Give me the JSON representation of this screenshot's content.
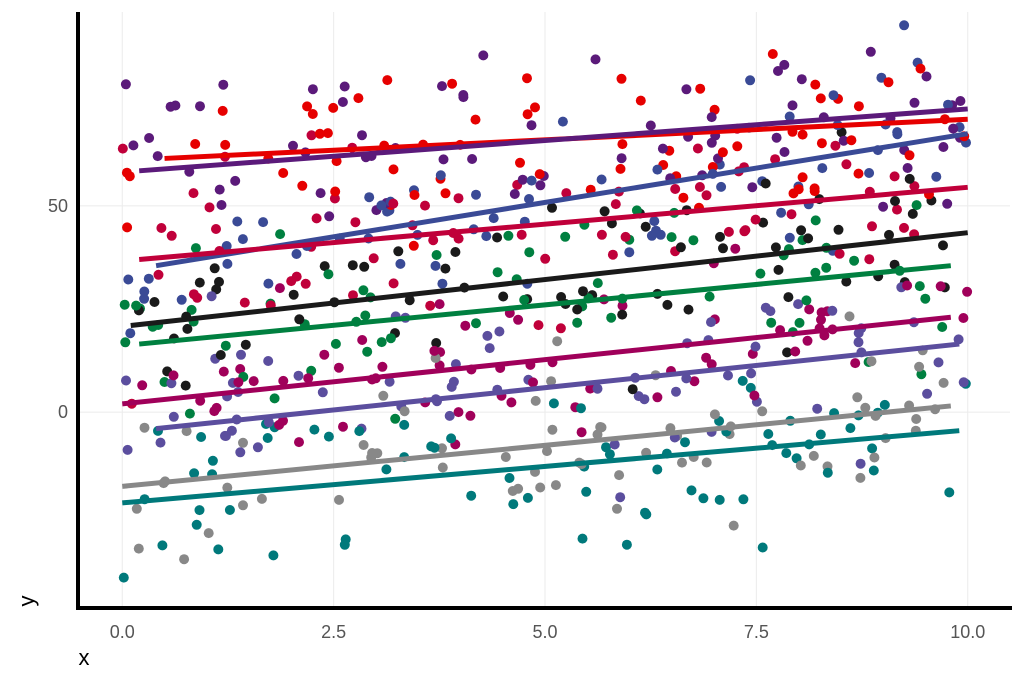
{
  "chart_data": {
    "type": "scatter",
    "title": "",
    "xlabel": "x",
    "ylabel": "y",
    "xlim": [
      -0.5,
      10.5
    ],
    "ylim": [
      -47,
      97
    ],
    "x_ticks": [
      0.0,
      2.5,
      5.0,
      7.5,
      10.0
    ],
    "x_tick_labels": [
      "0.0",
      "2.5",
      "5.0",
      "7.5",
      "10.0"
    ],
    "y_ticks": [
      0,
      50
    ],
    "y_tick_labels": [
      "0",
      "50"
    ],
    "grid": true,
    "legend": "none",
    "points_per_series": 70,
    "series": [
      {
        "color": "#E60000",
        "fit": {
          "x0": 0.5,
          "y0": 61.5,
          "x1": 10.0,
          "y1": 71.0
        }
      },
      {
        "color": "#5B1A7A",
        "fit": {
          "x0": 0.2,
          "y0": 58.5,
          "x1": 10.0,
          "y1": 73.5
        }
      },
      {
        "color": "#3A4A96",
        "fit": {
          "x0": 0.4,
          "y0": 35.5,
          "x1": 10.0,
          "y1": 67.5
        }
      },
      {
        "color": "#C0003A",
        "fit": {
          "x0": 0.2,
          "y0": 37.0,
          "x1": 10.0,
          "y1": 54.5
        }
      },
      {
        "color": "#1A1A1A",
        "fit": {
          "x0": 0.1,
          "y0": 21.0,
          "x1": 10.0,
          "y1": 43.5
        }
      },
      {
        "color": "#008040",
        "fit": {
          "x0": 0.2,
          "y0": 16.5,
          "x1": 9.8,
          "y1": 35.5
        }
      },
      {
        "color": "#A0005A",
        "fit": {
          "x0": 0.0,
          "y0": 2.0,
          "x1": 9.8,
          "y1": 23.0
        }
      },
      {
        "color": "#5B4E9E",
        "fit": {
          "x0": 0.4,
          "y0": -4.0,
          "x1": 9.9,
          "y1": 16.5
        }
      },
      {
        "color": "#888888",
        "fit": {
          "x0": 0.0,
          "y0": -18.0,
          "x1": 9.8,
          "y1": 1.5
        }
      },
      {
        "color": "#00797B",
        "fit": {
          "x0": 0.0,
          "y0": -22.0,
          "x1": 9.9,
          "y1": -4.5
        }
      }
    ]
  }
}
